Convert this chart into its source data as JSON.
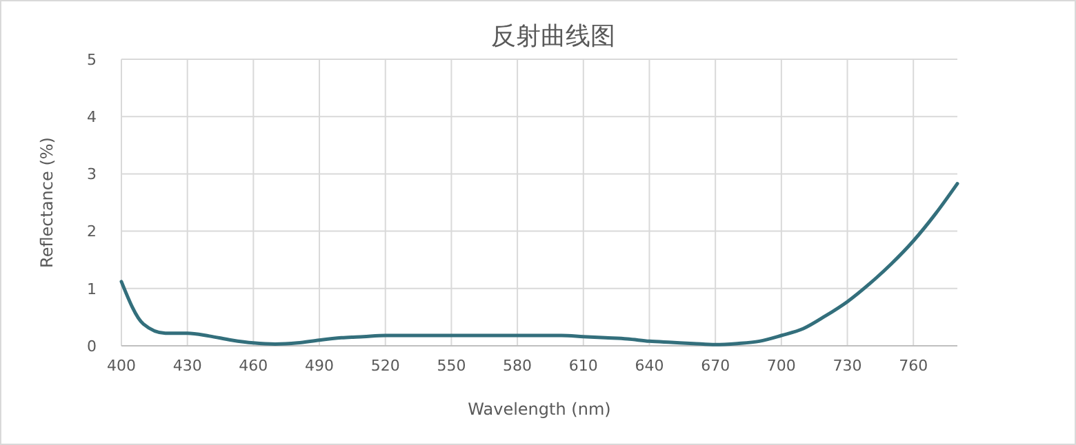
{
  "chart_data": {
    "type": "line",
    "title": "反射曲线图",
    "xlabel": "Wavelength (nm)",
    "ylabel": "Reflectance (%)",
    "x": [
      400,
      410,
      420,
      430,
      440,
      450,
      460,
      470,
      480,
      490,
      500,
      510,
      520,
      530,
      540,
      550,
      560,
      570,
      580,
      590,
      600,
      610,
      620,
      630,
      640,
      650,
      660,
      670,
      680,
      690,
      700,
      710,
      720,
      730,
      740,
      750,
      760,
      770,
      780
    ],
    "series": [
      {
        "color": "#336f7c",
        "values": [
          1.12,
          0.38,
          0.22,
          0.22,
          0.17,
          0.1,
          0.05,
          0.03,
          0.05,
          0.1,
          0.14,
          0.16,
          0.18,
          0.18,
          0.18,
          0.18,
          0.18,
          0.18,
          0.18,
          0.18,
          0.18,
          0.16,
          0.14,
          0.12,
          0.08,
          0.06,
          0.04,
          0.02,
          0.04,
          0.08,
          0.18,
          0.3,
          0.52,
          0.77,
          1.08,
          1.43,
          1.83,
          2.3,
          2.83
        ]
      }
    ],
    "xlim": [
      400,
      780
    ],
    "xticks": [
      400,
      430,
      460,
      490,
      520,
      550,
      580,
      610,
      640,
      670,
      700,
      730,
      760
    ],
    "ylim": [
      0,
      5
    ],
    "yticks": [
      0,
      1,
      2,
      3,
      4,
      5
    ],
    "grid": true,
    "line_style": "solid",
    "marker": "none"
  }
}
